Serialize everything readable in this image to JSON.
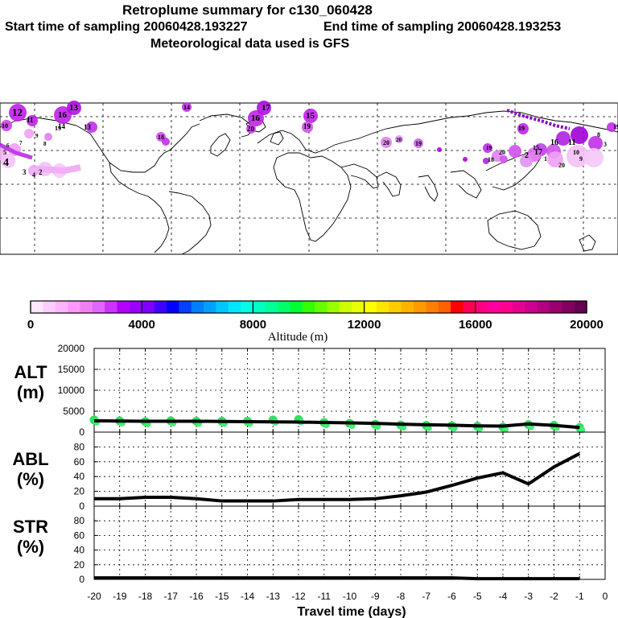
{
  "header": {
    "title": "Retroplume summary for c130_060428",
    "start_label": "Start time of sampling 20060428.193227",
    "end_label": "End time of sampling 20060428.193253",
    "met_label": "Meteorological data used is GFS"
  },
  "colorbar": {
    "ticks": [
      "0",
      "4000",
      "8000",
      "12000",
      "16000",
      "20000"
    ],
    "label": "Altitude (m)",
    "colors": [
      "#ffe6ff",
      "#ffccff",
      "#ffb3ff",
      "#ff99ff",
      "#f080f0",
      "#e066ff",
      "#cc33ff",
      "#b300ff",
      "#9900ff",
      "#8000ff",
      "#4000ff",
      "#0000ff",
      "#0040ff",
      "#0080ff",
      "#00a0ff",
      "#00c8ff",
      "#00e6ff",
      "#00ffe6",
      "#00ffc0",
      "#00ff99",
      "#00ff66",
      "#00ff33",
      "#33ff00",
      "#66ff00",
      "#99ff00",
      "#ccff00",
      "#eaff00",
      "#ffff00",
      "#ffe600",
      "#ffcc00",
      "#ffb300",
      "#ff9900",
      "#ff8000",
      "#ff6000",
      "#ff0000",
      "#ff0050",
      "#ff0080",
      "#ff00a0",
      "#ff0090",
      "#e60090",
      "#cc0090",
      "#b30080",
      "#990070",
      "#800060",
      "#660050"
    ]
  },
  "map": {
    "labels": {
      "hour_markers": [
        "12",
        "11",
        "16",
        "13",
        "14",
        "17",
        "16",
        "15",
        "19",
        "20",
        "13",
        "14",
        "10",
        "20",
        "18",
        "19",
        "20",
        "19",
        "9",
        "8",
        "7",
        "6",
        "5",
        "4",
        "2",
        "3",
        "19",
        "15",
        "20",
        "18",
        "19",
        "17",
        "16",
        "11",
        "10",
        "9",
        "8",
        "3",
        "2",
        "1",
        "20",
        "19",
        "4"
      ]
    }
  },
  "chart_data": [
    {
      "type": "scatter",
      "panel": "ALT",
      "ylabel": [
        "ALT",
        "(m)"
      ],
      "ylim": [
        0,
        20000
      ],
      "yticks": [
        "20000",
        "15000",
        "10000",
        "5000",
        "0"
      ],
      "x": [
        -20,
        -19,
        -18,
        -17,
        -16,
        -15,
        -14,
        -13,
        -12,
        -11,
        -10,
        -9,
        -8,
        -7,
        -6,
        -5,
        -4,
        -3,
        -2,
        -1
      ],
      "mean_line": [
        2700,
        2650,
        2600,
        2600,
        2600,
        2550,
        2500,
        2450,
        2400,
        2300,
        2200,
        2100,
        1900,
        1750,
        1650,
        1500,
        1450,
        1950,
        1600,
        1100
      ],
      "scatter_alt": [
        2900,
        2700,
        2500,
        2700,
        2600,
        2600,
        2600,
        2900,
        3000,
        2300,
        2100,
        1900,
        1700,
        1600,
        1500,
        1400,
        1200,
        1800,
        1600,
        1100
      ]
    },
    {
      "type": "line",
      "panel": "ABL",
      "ylabel": [
        "ABL",
        "(%)"
      ],
      "ylim": [
        0,
        100
      ],
      "yticks": [
        "80",
        "60",
        "40",
        "20",
        "0"
      ],
      "x": [
        -20,
        -19,
        -18,
        -17,
        -16,
        -15,
        -14,
        -13,
        -12,
        -11,
        -10,
        -9,
        -8,
        -7,
        -6,
        -5,
        -4,
        -3,
        -2,
        -1
      ],
      "values": [
        10,
        10,
        12,
        12,
        10,
        7,
        7,
        7,
        9,
        9,
        9,
        10,
        14,
        19,
        28,
        38,
        45,
        30,
        53,
        71
      ]
    },
    {
      "type": "line",
      "panel": "STR",
      "ylabel": [
        "STR",
        "(%)"
      ],
      "ylim": [
        0,
        100
      ],
      "yticks": [
        "80",
        "60",
        "40",
        "20",
        "0"
      ],
      "x": [
        -20,
        -19,
        -18,
        -17,
        -16,
        -15,
        -14,
        -13,
        -12,
        -11,
        -10,
        -9,
        -8,
        -7,
        -6,
        -5,
        -4,
        -3,
        -2,
        -1
      ],
      "values": [
        2,
        2,
        2,
        2,
        2,
        2,
        2,
        2,
        2,
        2,
        2,
        2,
        2,
        2,
        2,
        1,
        1,
        1,
        1,
        1
      ]
    }
  ],
  "xaxis": {
    "ticks": [
      "-20",
      "-19",
      "-18",
      "-17",
      "-16",
      "-15",
      "-14",
      "-13",
      "-12",
      "-11",
      "-10",
      "-9",
      "-8",
      "-7",
      "-6",
      "-5",
      "-4",
      "-3",
      "-2",
      "-1",
      "0"
    ],
    "label": "Travel time (days)"
  }
}
